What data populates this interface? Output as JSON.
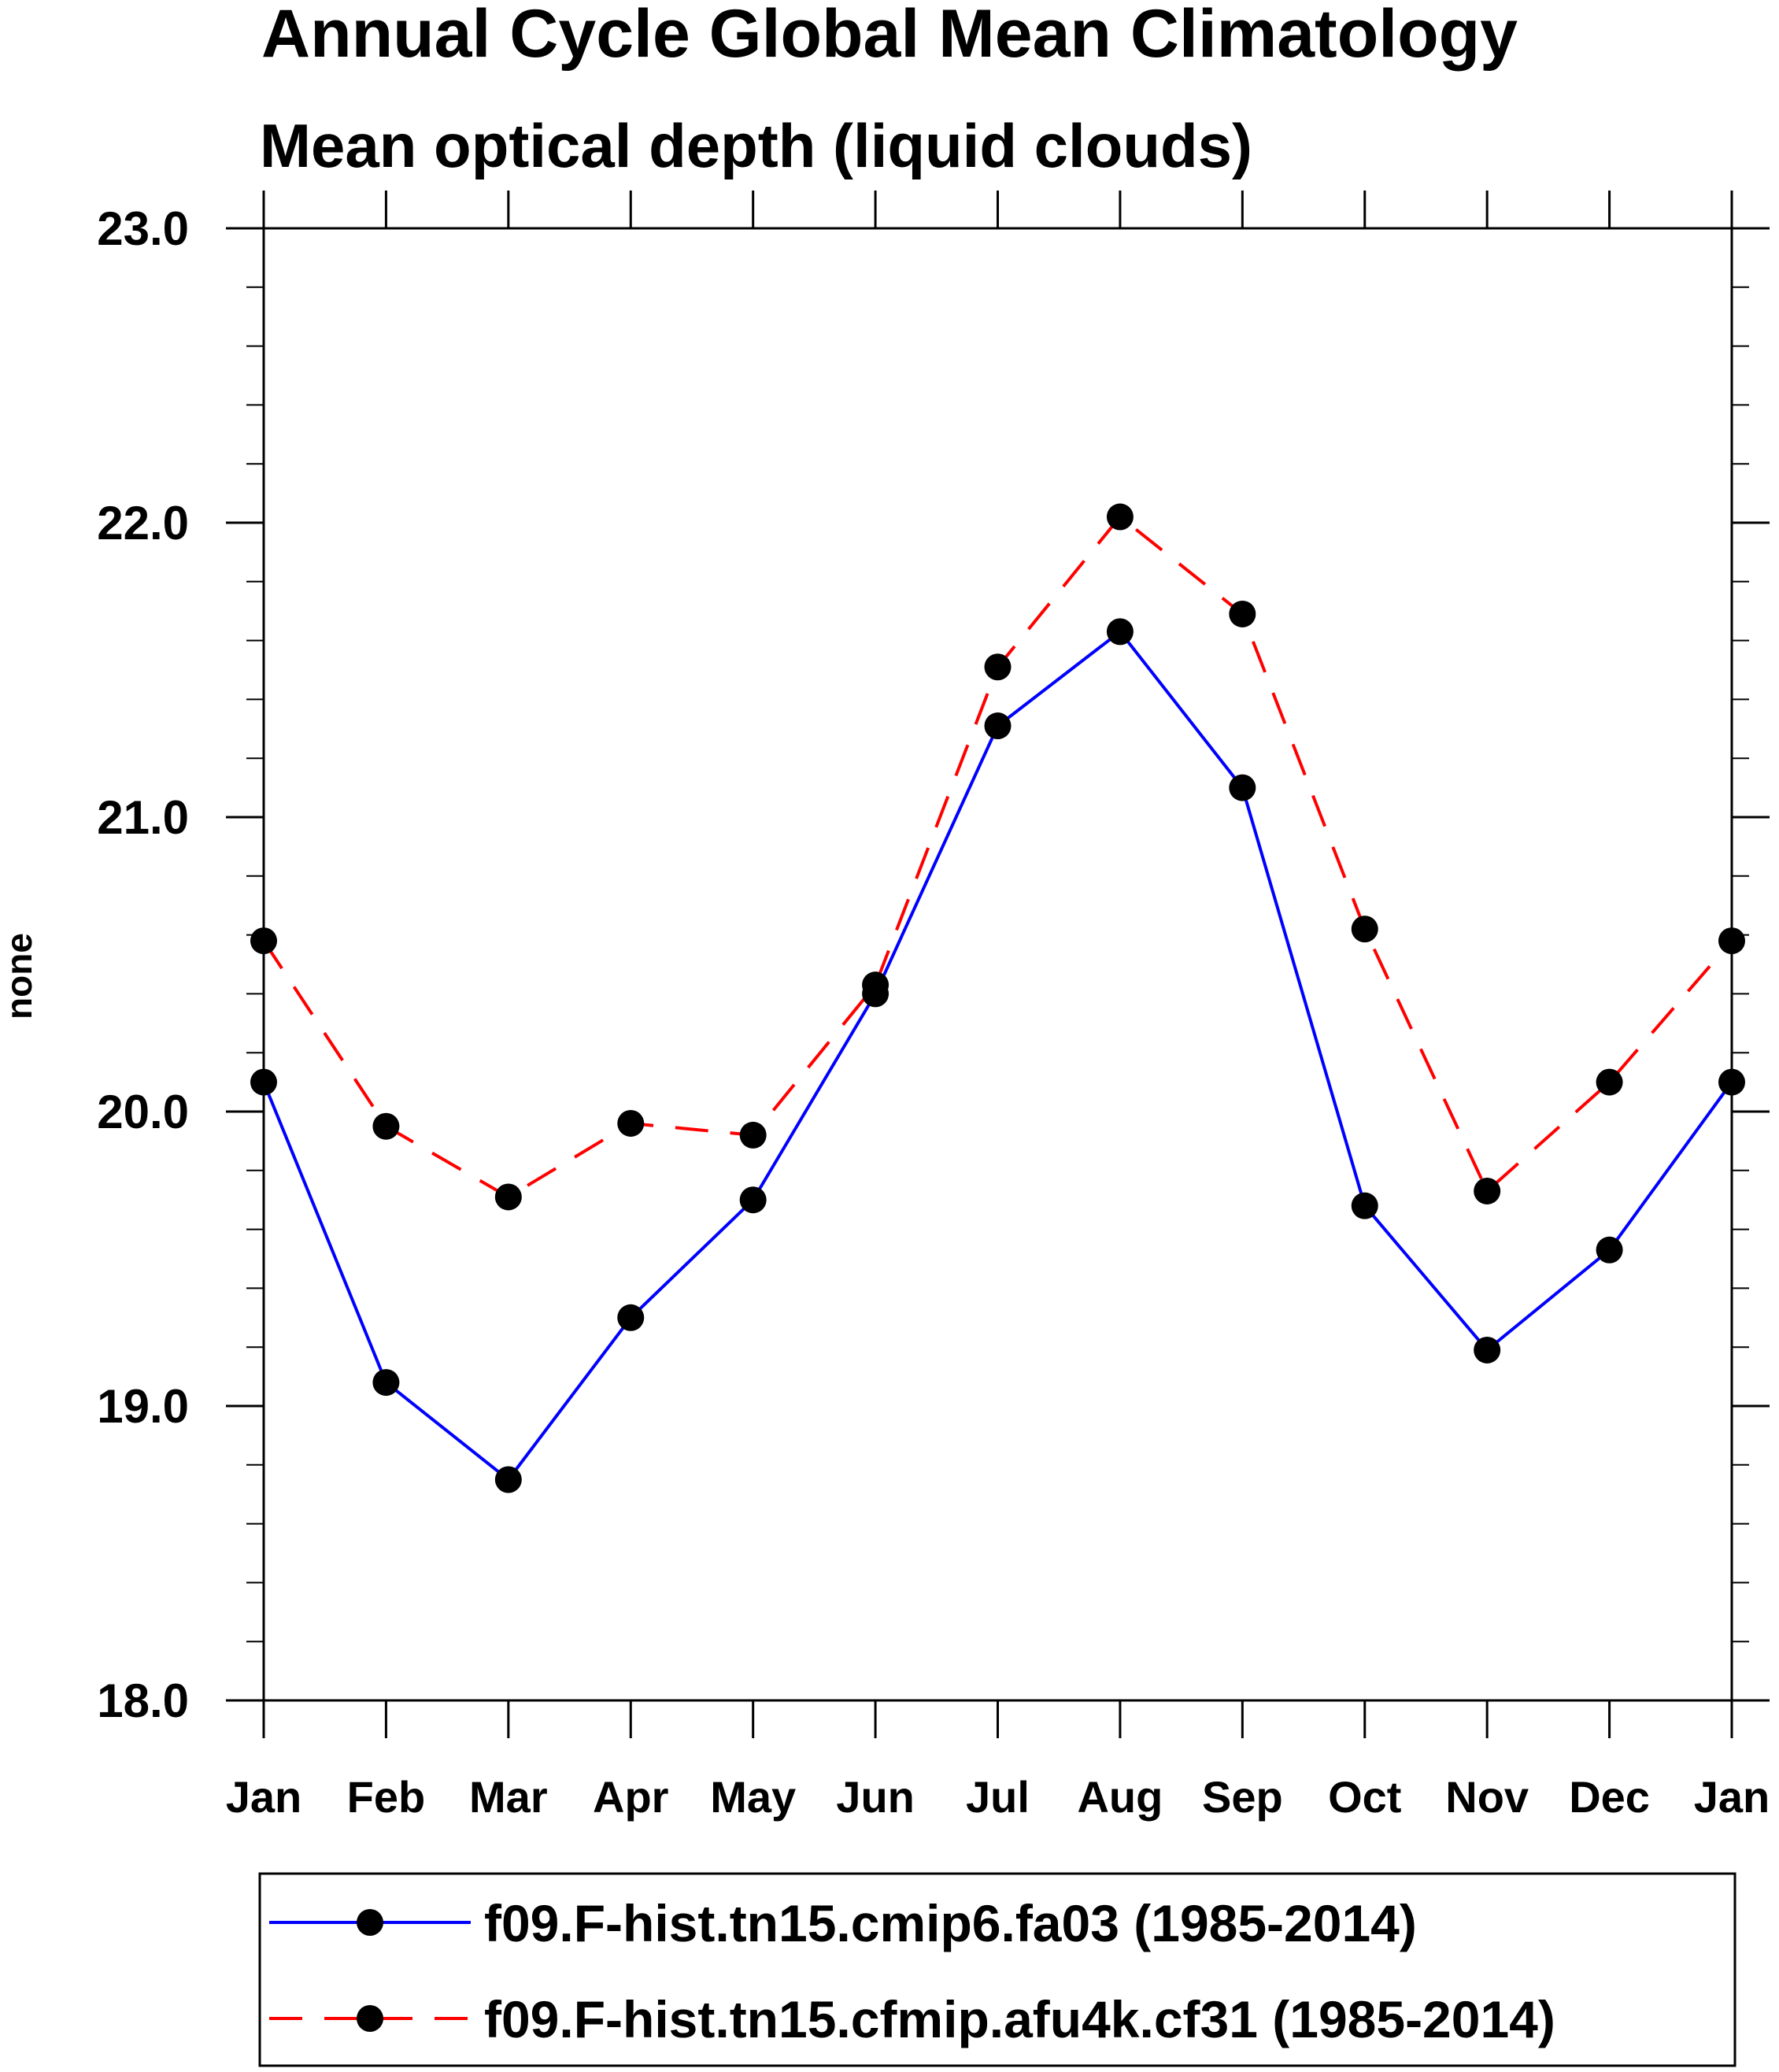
{
  "chart_data": {
    "type": "line",
    "title": "Annual Cycle Global Mean Climatology",
    "subtitle": "Mean optical depth (liquid clouds)",
    "ylabel": "none",
    "xlabel": "",
    "ylim": [
      18.0,
      23.0
    ],
    "yticks": [
      "18.0",
      "19.0",
      "20.0",
      "21.0",
      "22.0",
      "23.0"
    ],
    "ytick_values": [
      18.0,
      19.0,
      20.0,
      21.0,
      22.0,
      23.0
    ],
    "categories": [
      "Jan",
      "Feb",
      "Mar",
      "Apr",
      "May",
      "Jun",
      "Jul",
      "Aug",
      "Sep",
      "Oct",
      "Nov",
      "Dec",
      "Jan"
    ],
    "legend_position": "bottom",
    "series": [
      {
        "name": "f09.F-hist.tn15.cmip6.fa03 (1985-2014)",
        "color": "#0000ff",
        "line_style": "solid",
        "marker": "filled-circle",
        "marker_color": "#000000",
        "values": [
          20.1,
          19.08,
          18.75,
          19.3,
          19.7,
          20.4,
          21.31,
          21.63,
          21.1,
          19.68,
          19.19,
          19.53,
          20.1
        ]
      },
      {
        "name": "f09.F-hist.tn15.cfmip.afu4k.cf31 (1985-2014)",
        "color": "#ff0000",
        "line_style": "dashed",
        "marker": "filled-circle",
        "marker_color": "#000000",
        "values": [
          20.58,
          19.95,
          19.71,
          19.96,
          19.92,
          20.43,
          21.51,
          22.02,
          21.69,
          20.62,
          19.73,
          20.1,
          20.58
        ]
      }
    ]
  }
}
